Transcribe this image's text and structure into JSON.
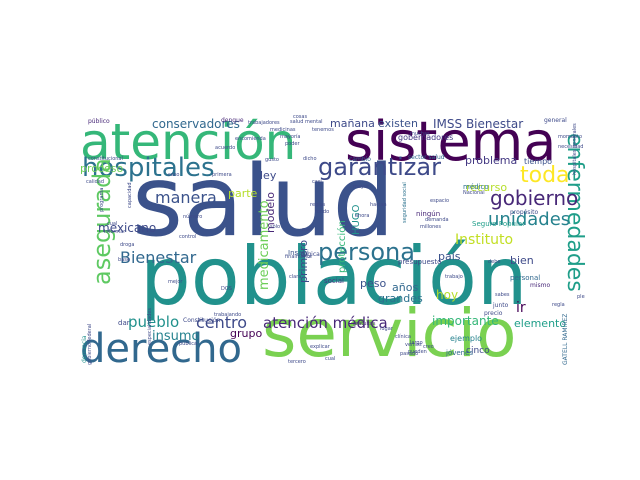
{
  "words": [
    {
      "text": "salud",
      "color": "#3b528b"
    },
    {
      "text": "población",
      "color": "#21918c"
    },
    {
      "text": "servicio",
      "color": "#7ad151"
    },
    {
      "text": "sistema",
      "color": "#440154"
    },
    {
      "text": "atención",
      "color": "#35b779"
    },
    {
      "text": "derecho",
      "color": "#31688e"
    },
    {
      "text": "hospitales",
      "color": "#2c728e"
    },
    {
      "text": "garantizar",
      "color": "#3e4a89"
    },
    {
      "text": "enfermedades",
      "color": "#1f9e89"
    },
    {
      "text": "asegurada",
      "color": "#5ec962"
    },
    {
      "text": "persona",
      "color": "#2c728e"
    },
    {
      "text": "toda",
      "color": "#fde725"
    },
    {
      "text": "gobierno",
      "color": "#482878"
    },
    {
      "text": "unidades",
      "color": "#26828e"
    },
    {
      "text": "Bienestar",
      "color": "#31688e"
    },
    {
      "text": "centro",
      "color": "#3e4a89"
    },
    {
      "text": "atención médica",
      "color": "#482878"
    },
    {
      "text": "pueblo",
      "color": "#21918c"
    },
    {
      "text": "insumo",
      "color": "#26828e"
    },
    {
      "text": "manera",
      "color": "#3b528b"
    },
    {
      "text": "conservadores",
      "color": "#31688e"
    },
    {
      "text": "IMSS Bienestar",
      "color": "#3e4a89"
    },
    {
      "text": "Instituto",
      "color": "#c2df23"
    },
    {
      "text": "medicamento",
      "color": "#6ece58"
    },
    {
      "text": "mexicano",
      "color": "#3e4a89"
    },
    {
      "text": "problema",
      "color": "#443983"
    },
    {
      "text": "recurso",
      "color": "#b5de2b"
    },
    {
      "text": "importante",
      "color": "#35b779"
    },
    {
      "text": "país",
      "color": "#3b528b"
    },
    {
      "text": "bien",
      "color": "#3e4a89"
    },
    {
      "text": "ir",
      "color": "#440154"
    },
    {
      "text": "elemento",
      "color": "#1f9e89"
    },
    {
      "text": "hoy",
      "color": "#b5de2b"
    },
    {
      "text": "años",
      "color": "#31688e"
    },
    {
      "text": "grandes",
      "color": "#2c728e"
    },
    {
      "text": "peso",
      "color": "#3b528b"
    },
    {
      "text": "mañana",
      "color": "#3e4a89"
    },
    {
      "text": "existen",
      "color": "#3b528b"
    },
    {
      "text": "gobernadores",
      "color": "#443983"
    },
    {
      "text": "proceso",
      "color": "#6ece58"
    },
    {
      "text": "parte",
      "color": "#b5de2b"
    },
    {
      "text": "ley",
      "color": "#3e4a89"
    },
    {
      "text": "modelo",
      "color": "#482878"
    },
    {
      "text": "protección",
      "color": "#35b779"
    },
    {
      "text": "HUGO",
      "color": "#21918c"
    },
    {
      "text": "primero",
      "color": "#3e4a89"
    },
    {
      "text": "grupo",
      "color": "#440154"
    },
    {
      "text": "cinco",
      "color": "#3e4a89"
    },
    {
      "text": "ejemplo",
      "color": "#26828e"
    },
    {
      "text": "tiempo",
      "color": "#3b528b"
    },
    {
      "text": "médico",
      "color": "#2c728e"
    },
    {
      "text": "Seguro Popular",
      "color": "#1f9e89"
    },
    {
      "text": "presupuesto",
      "color": "#3e4a89"
    },
    {
      "text": "ningún",
      "color": "#482878"
    },
    {
      "text": "social",
      "color": "#443983"
    },
    {
      "text": "Insabi",
      "color": "#3b528b"
    },
    {
      "text": "jóvenes",
      "color": "#31688e"
    },
    {
      "text": "dar",
      "color": "#3e4a89"
    },
    {
      "text": "público",
      "color": "#482878"
    },
    {
      "text": "salud mental",
      "color": "#3e4a89"
    },
    {
      "text": "sector salud",
      "color": "#31688e"
    },
    {
      "text": "cambio",
      "color": "#31688e"
    },
    {
      "text": "dengue",
      "color": "#482878"
    },
    {
      "text": "general",
      "color": "#3e4a89"
    },
    {
      "text": "personal",
      "color": "#31688e"
    },
    {
      "text": "mismo",
      "color": "#482878"
    },
    {
      "text": "propósito",
      "color": "#3e4a89"
    },
    {
      "text": "Constitución",
      "color": "#3e4a89"
    },
    {
      "text": "seguridad social",
      "color": "#2c728e"
    },
    {
      "text": "denuncia",
      "color": "#21918c"
    },
    {
      "text": "GATELL RAMÍREZ",
      "color": "#31688e"
    },
    {
      "text": "lógica",
      "color": "#3e4a89"
    },
    {
      "text": "gratuitos",
      "color": "#482878"
    },
    {
      "text": "trabajo",
      "color": "#3e4a89"
    },
    {
      "text": "pueden",
      "color": "#3e4a89"
    },
    {
      "text": "precio",
      "color": "#3e4a89"
    },
    {
      "text": "junto",
      "color": "#3e4a89"
    },
    {
      "text": "caso",
      "color": "#3e4a89"
    },
    {
      "text": "primera",
      "color": "#3e4a89"
    },
    {
      "text": "calidad",
      "color": "#3e4a89"
    },
    {
      "text": "mayor",
      "color": "#3e4a89"
    },
    {
      "text": "número",
      "color": "#3e4a89"
    },
    {
      "text": "control",
      "color": "#3e4a89"
    },
    {
      "text": "sólo",
      "color": "#3e4a89"
    },
    {
      "text": "mal",
      "color": "#3e4a89"
    },
    {
      "text": "clara",
      "color": "#3e4a89"
    },
    {
      "text": "medicinas",
      "color": "#3e4a89"
    },
    {
      "text": "trabajadores",
      "color": "#3e4a89"
    },
    {
      "text": "acuerdo",
      "color": "#3e4a89"
    },
    {
      "text": "tercero",
      "color": "#3e4a89"
    },
    {
      "text": "pasado",
      "color": "#3e4a89"
    },
    {
      "text": "creo",
      "color": "#3e4a89"
    },
    {
      "text": "largo",
      "color": "#3e4a89"
    },
    {
      "text": "mejor",
      "color": "#3e4a89"
    },
    {
      "text": "base",
      "color": "#3e4a89"
    },
    {
      "text": "cual",
      "color": "#3e4a89"
    },
    {
      "text": "informar",
      "color": "#3e4a89"
    },
    {
      "text": "programa",
      "color": "#3e4a89"
    },
    {
      "text": "constitucional",
      "color": "#3e4a89"
    },
    {
      "text": "gobierno federal",
      "color": "#3e4a89"
    },
    {
      "text": "trabajando",
      "color": "#3e4a89"
    },
    {
      "text": "especialidades",
      "color": "#3e4a89"
    },
    {
      "text": "capacidad",
      "color": "#3e4a89"
    },
    {
      "text": "necesidad",
      "color": "#3e4a89"
    },
    {
      "text": "momento",
      "color": "#3e4a89"
    },
    {
      "text": "hospitales generales",
      "color": "#3e4a89"
    },
    {
      "text": "sabes",
      "color": "#3e4a89"
    },
    {
      "text": "debe",
      "color": "#3e4a89"
    },
    {
      "text": "millones",
      "color": "#3e4a89"
    },
    {
      "text": "clínica",
      "color": "#3e4a89"
    },
    {
      "text": "Nacional",
      "color": "#3e4a89"
    },
    {
      "text": "espacio",
      "color": "#3e4a89"
    },
    {
      "text": "demanda",
      "color": "#3e4a89"
    },
    {
      "text": "regla",
      "color": "#3e4a89"
    },
    {
      "text": "hacían",
      "color": "#3e4a89"
    },
    {
      "text": "fondo",
      "color": "#3e4a89"
    },
    {
      "text": "reglas",
      "color": "#3e4a89"
    },
    {
      "text": "casi",
      "color": "#3e4a89"
    },
    {
      "text": "gusto",
      "color": "#3e4a89"
    },
    {
      "text": "mayoría",
      "color": "#3e4a89"
    },
    {
      "text": "poder",
      "color": "#3e4a89"
    },
    {
      "text": "dicho",
      "color": "#3e4a89"
    },
    {
      "text": "cosas",
      "color": "#3e4a89"
    },
    {
      "text": "tenemos",
      "color": "#3e4a89"
    },
    {
      "text": "lugar",
      "color": "#3e4a89"
    },
    {
      "text": "finalmente",
      "color": "#3e4a89"
    },
    {
      "text": "ahora",
      "color": "#3e4a89"
    },
    {
      "text": "encomienda",
      "color": "#3e4a89"
    },
    {
      "text": "muchas",
      "color": "#3e4a89"
    },
    {
      "text": "vemos",
      "color": "#3e4a89"
    },
    {
      "text": "explicar",
      "color": "#3e4a89"
    },
    {
      "text": "cual",
      "color": "#3e4a89"
    },
    {
      "text": "pleno",
      "color": "#3e4a89"
    },
    {
      "text": "droga",
      "color": "#3e4a89"
    },
    {
      "text": "pública",
      "color": "#3e4a89"
    },
    {
      "text": "DOS",
      "color": "#3e4a89"
    }
  ]
}
